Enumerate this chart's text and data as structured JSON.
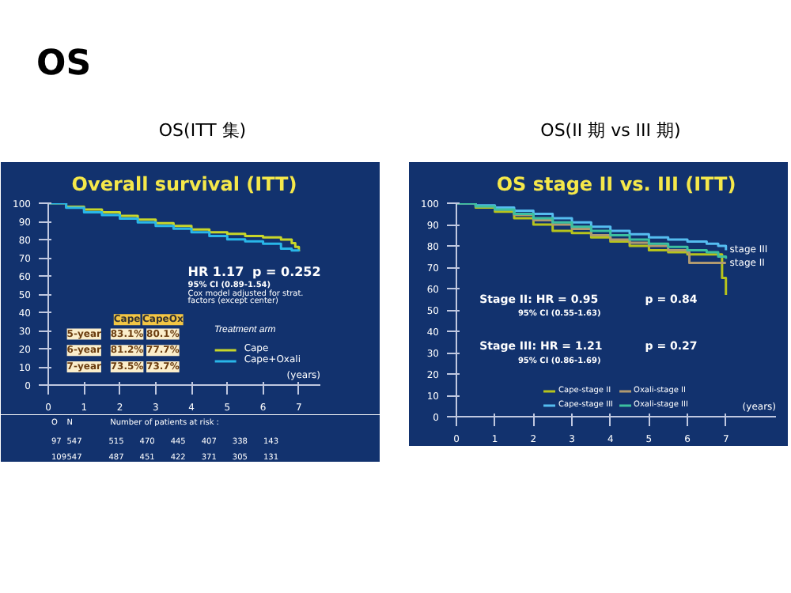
{
  "chart_data": [
    {
      "type": "step",
      "title": "Overall survival (ITT)",
      "subtitle": "OS(ITT 集)",
      "xlabel": "(years)",
      "legend_title": "Treatment arm",
      "legend": "bottom right",
      "x": [
        0,
        0.5,
        1,
        1.5,
        2,
        2.5,
        3,
        3.5,
        4,
        4.5,
        5,
        5.5,
        6,
        6.5,
        6.8,
        6.9,
        7
      ],
      "series": [
        {
          "name": "Cape",
          "color": "#c8d62a",
          "values": [
            100,
            98,
            96.5,
            95,
            93,
            91,
            89,
            87.5,
            85.5,
            84,
            83.1,
            82,
            81.2,
            80,
            78,
            76,
            73.5
          ]
        },
        {
          "name": "Cape+Oxali",
          "color": "#29b6e8",
          "values": [
            100,
            97.5,
            95,
            93.5,
            91.5,
            89.5,
            87.5,
            86,
            84,
            82,
            80.1,
            79,
            77.7,
            75,
            74,
            74,
            73.7
          ]
        }
      ],
      "xlim": [
        0,
        7.6
      ],
      "ylim": [
        0,
        100
      ],
      "xticks": [
        0,
        1,
        2,
        3,
        4,
        5,
        6,
        7
      ],
      "yticks": [
        0,
        10,
        20,
        30,
        40,
        50,
        60,
        70,
        80,
        90,
        100
      ],
      "grid": false,
      "annotations": [
        "OS",
        "HR  1.17",
        "p = 0.252",
        "95% CI (0.89-1.54)",
        "Cox model adjusted for strat.",
        "factors (except center)",
        "Cape",
        "CapeOx",
        "5-year",
        "83.1%",
        "80.1%",
        "6-year",
        "81.2%",
        "77.7%",
        "7-year",
        "73.5%",
        "73.7%",
        "O",
        "N",
        "Number of patients at risk :",
        "97",
        "547",
        "515",
        "470",
        "445",
        "407",
        "338",
        "143",
        "109",
        "547",
        "487",
        "451",
        "422",
        "371",
        "305",
        "131"
      ]
    },
    {
      "type": "step",
      "title": "OS stage II vs. III (ITT)",
      "subtitle": "OS(II 期   vs III 期)",
      "xlabel": "(years)",
      "legend": "bottom",
      "x": [
        0,
        0.5,
        1,
        1.5,
        2,
        2.5,
        3,
        3.5,
        4,
        4.5,
        5,
        5.5,
        6,
        6.05,
        6.5,
        6.8,
        6.9,
        7
      ],
      "series": [
        {
          "name": "Cape-stage II",
          "color": "#b7c41c",
          "values": [
            100,
            98,
            96,
            93,
            90,
            87,
            86,
            84,
            82,
            80,
            78,
            77,
            76,
            76,
            76,
            76,
            65,
            57
          ]
        },
        {
          "name": "Oxali-stage II",
          "color": "#b09a70",
          "values": [
            100,
            98.5,
            97,
            94.5,
            92,
            90,
            88,
            85,
            83,
            81.5,
            80,
            78,
            77,
            72,
            72,
            72,
            72,
            72
          ]
        },
        {
          "name": "Cape-stage III",
          "color": "#55bdf0",
          "values": [
            100,
            99,
            98,
            96.5,
            95,
            93,
            91,
            89,
            87,
            85.5,
            84,
            83,
            82,
            82,
            81,
            80,
            80,
            78
          ]
        },
        {
          "name": "Oxali-stage III",
          "color": "#3cc0a0",
          "values": [
            100,
            98.5,
            97,
            95,
            93,
            91,
            89,
            87,
            85,
            83,
            81,
            79.5,
            78,
            78,
            77,
            75,
            75,
            74
          ]
        }
      ],
      "xlim": [
        0,
        8.3
      ],
      "ylim": [
        0,
        100
      ],
      "xticks": [
        0,
        1,
        2,
        3,
        4,
        5,
        6,
        7
      ],
      "yticks": [
        0,
        10,
        20,
        30,
        40,
        50,
        60,
        70,
        80,
        90,
        100
      ],
      "grid": false,
      "annotations": [
        "Stage II:  HR = 0.95",
        "p = 0.84",
        "95% CI (0.55-1.63)",
        "Stage III: HR = 1.21",
        "p = 0.27",
        "95% CI (0.86-1.69)",
        {
          "text": "stage III",
          "x": 7,
          "y": 78
        },
        {
          "text": "stage II",
          "x": 7,
          "y": 72
        }
      ]
    }
  ]
}
